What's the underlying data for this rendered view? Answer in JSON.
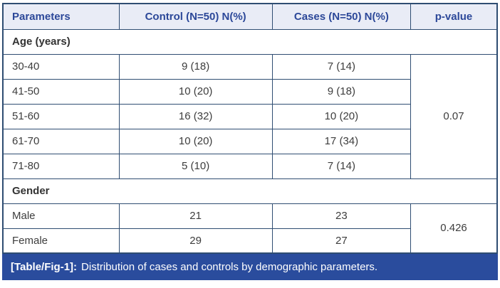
{
  "colors": {
    "border": "#2f4d72",
    "header_bg": "#e9ecf6",
    "header_text": "#2c4899",
    "body_text": "#3d3d3d",
    "caption_bg": "#2a4c9d",
    "caption_text": "#ffffff"
  },
  "table": {
    "columns": [
      "Parameters",
      "Control (N=50) N(%)",
      "Cases (N=50) N(%)",
      "p-value"
    ],
    "sections": [
      {
        "label": "Age (years)",
        "p_value": "0.07",
        "rows": [
          {
            "parameter": "30-40",
            "control": "9 (18)",
            "cases": "7 (14)"
          },
          {
            "parameter": "41-50",
            "control": "10 (20)",
            "cases": "9 (18)"
          },
          {
            "parameter": "51-60",
            "control": "16 (32)",
            "cases": "10 (20)"
          },
          {
            "parameter": "61-70",
            "control": "10 (20)",
            "cases": "17 (34)"
          },
          {
            "parameter": "71-80",
            "control": "5 (10)",
            "cases": "7 (14)"
          }
        ]
      },
      {
        "label": "Gender",
        "p_value": "0.426",
        "rows": [
          {
            "parameter": "Male",
            "control": "21",
            "cases": "23"
          },
          {
            "parameter": "Female",
            "control": "29",
            "cases": "27"
          }
        ]
      }
    ]
  },
  "caption": {
    "tag": "[Table/Fig-1]:",
    "text": "Distribution of cases and controls by demographic parameters."
  }
}
